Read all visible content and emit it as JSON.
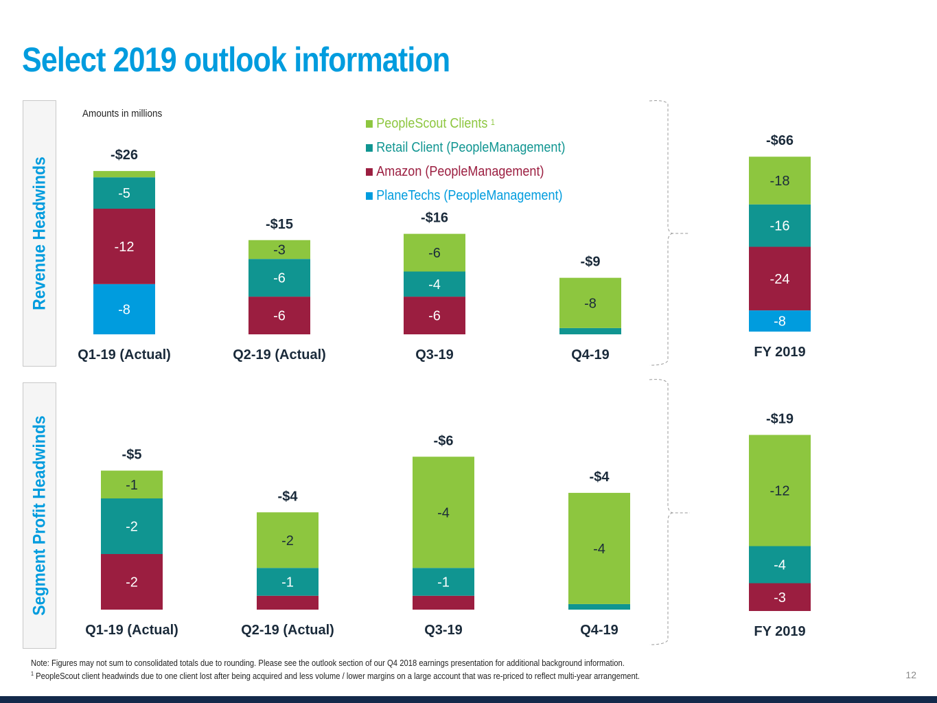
{
  "slide": {
    "title": "Select 2019 outlook information",
    "amounts_note": "Amounts in millions",
    "page_number": "12",
    "notes": [
      "Note: Figures may not sum to consolidated totals due to rounding. Please see the outlook section of our Q4 2018 earnings presentation for additional background information.",
      "PeopleScout client headwinds due to one client lost after being acquired and less volume / lower margins on a large account that was re-priced to reflect multi-year arrangement."
    ],
    "footnote_marker": "1",
    "colors": {
      "title": "#009cde",
      "footer_bar": "#13294b"
    }
  },
  "legend": [
    {
      "name": "PeopleScout Clients",
      "superscript": "1",
      "color": "#8dc63f",
      "text_color": "#8dc63f"
    },
    {
      "name": "Retail Client (PeopleManagement)",
      "superscript": "",
      "color": "#109591",
      "text_color": "#109591"
    },
    {
      "name": "Amazon (PeopleManagement)",
      "superscript": "",
      "color": "#9b1e40",
      "text_color": "#9b1e40"
    },
    {
      "name": "PlaneTechs (PeopleManagement)",
      "superscript": "",
      "color": "#009cde",
      "text_color": "#009cde"
    }
  ],
  "chart_data": [
    {
      "type": "bar",
      "stacked": true,
      "title": "Revenue Headwinds",
      "units": "Amounts in millions",
      "categories": [
        "Q1-19 (Actual)",
        "Q2-19 (Actual)",
        "Q3-19",
        "Q4-19",
        "FY 2019"
      ],
      "totals": [
        "-$26",
        "-$15",
        "-$16",
        "-$9",
        "-$66"
      ],
      "series": [
        {
          "name": "PlaneTechs (PeopleManagement)",
          "values": [
            -8,
            0,
            0,
            0,
            -8
          ],
          "labels": [
            "-8",
            "",
            "",
            "",
            "-8"
          ]
        },
        {
          "name": "Amazon (PeopleManagement)",
          "values": [
            -12,
            -6,
            -6,
            0,
            -24
          ],
          "labels": [
            "-12",
            "-6",
            "-6",
            "",
            "-24"
          ]
        },
        {
          "name": "Retail Client (PeopleManagement)",
          "values": [
            -5,
            -6,
            -4,
            -1,
            -16
          ],
          "labels": [
            "-5",
            "-6",
            "-4",
            "",
            "-16"
          ]
        },
        {
          "name": "PeopleScout Clients",
          "values": [
            -1,
            -3,
            -6,
            -8,
            -18
          ],
          "labels": [
            "",
            "-3",
            "-6",
            "-8",
            "-18"
          ]
        }
      ],
      "legend_position": "top-center"
    },
    {
      "type": "bar",
      "stacked": true,
      "title": "Segment Profit Headwinds",
      "units": "Amounts in millions",
      "categories": [
        "Q1-19 (Actual)",
        "Q2-19 (Actual)",
        "Q3-19",
        "Q4-19",
        "FY 2019"
      ],
      "totals": [
        "-$5",
        "-$4",
        "-$6",
        "-$4",
        "-$19"
      ],
      "series": [
        {
          "name": "PlaneTechs (PeopleManagement)",
          "values": [
            0,
            0,
            0,
            0,
            0
          ],
          "labels": [
            "",
            "",
            "",
            "",
            ""
          ]
        },
        {
          "name": "Amazon (PeopleManagement)",
          "values": [
            -2,
            -0.5,
            -0.5,
            0,
            -3
          ],
          "labels": [
            "-2",
            "",
            "",
            "",
            "-3"
          ]
        },
        {
          "name": "Retail Client (PeopleManagement)",
          "values": [
            -2,
            -1,
            -1,
            -0.2,
            -4
          ],
          "labels": [
            "-2",
            "-1",
            "-1",
            "",
            "-4"
          ]
        },
        {
          "name": "PeopleScout Clients",
          "values": [
            -1,
            -2,
            -4,
            -4,
            -12
          ],
          "labels": [
            "-1",
            "-2",
            "-4",
            "-4",
            "-12"
          ]
        }
      ]
    }
  ]
}
